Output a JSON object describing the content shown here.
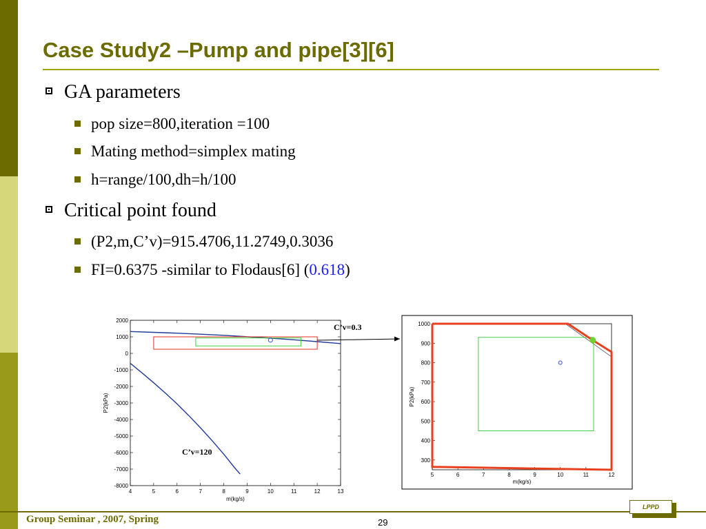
{
  "slide": {
    "title": "Case Study2 –Pump and pipe[3][6]",
    "bullets": [
      {
        "text": "GA parameters",
        "sub": [
          "pop size=800,iteration =100",
          "Mating method=simplex mating",
          "h=range/100,dh=h/100"
        ]
      },
      {
        "text": "Critical point found",
        "sub": [
          "(P2,m,C’v)=915.4706,11.2749,0.3036"
        ],
        "fi": {
          "prefix": "FI=0.6375 -similar to Flodaus[6] (",
          "value": "0.618",
          "suffix": ")"
        }
      }
    ]
  },
  "footer": {
    "left": "Group Seminar , 2007, Spring",
    "page": "29",
    "logo": "LPPD"
  },
  "chart_data": [
    {
      "type": "line",
      "xlabel": "m(kg/s)",
      "ylabel": "P2(kPa)",
      "xlim": [
        4,
        13
      ],
      "ylim": [
        -8000,
        2000
      ],
      "xticks": [
        4,
        5,
        6,
        7,
        8,
        9,
        10,
        11,
        12,
        13
      ],
      "yticks": [
        2000,
        1000,
        0,
        -1000,
        -2000,
        -3000,
        -4000,
        -5000,
        -6000,
        -7000,
        -8000
      ],
      "color_curves": "#1f3a9a",
      "annotations": [
        "C’v=0.3",
        "C’v=120"
      ],
      "series": [
        {
          "x": [
            4,
            5,
            6,
            7,
            8,
            9,
            10,
            11,
            12,
            13
          ],
          "y": [
            1320,
            1270,
            1220,
            1160,
            1090,
            1010,
            920,
            820,
            710,
            590
          ]
        },
        {
          "x": [
            4,
            4.5,
            5,
            5.5,
            6,
            6.5,
            7,
            7.5,
            8,
            8.5,
            8.7
          ],
          "y": [
            -600,
            -1180,
            -1780,
            -2400,
            -3060,
            -3760,
            -4500,
            -5280,
            -6100,
            -6980,
            -7300
          ]
        }
      ],
      "boxes": [
        {
          "x": [
            5,
            12
          ],
          "y": [
            250,
            1000
          ],
          "color": "#e03020"
        },
        {
          "x": [
            6.8,
            11.3
          ],
          "y": [
            450,
            930
          ],
          "color": "#40d040"
        }
      ],
      "point": {
        "x": 10,
        "y": 800
      }
    },
    {
      "type": "line",
      "xlabel": "m(kg/s)",
      "ylabel": "P2(kPa)",
      "xlim": [
        5,
        12
      ],
      "ylim": [
        250,
        1000
      ],
      "xticks": [
        5,
        6,
        7,
        8,
        9,
        10,
        11,
        12
      ],
      "yticks": [
        1000,
        900,
        800,
        700,
        600,
        500,
        400,
        300
      ],
      "region": {
        "x": [
          5,
          10.3,
          11.27,
          12,
          12,
          5,
          5
        ],
        "y": [
          1000,
          1000,
          915,
          855,
          250,
          265,
          1000
        ],
        "color": "#e8401c"
      },
      "lines": [
        {
          "x": [
            10.2,
            12
          ],
          "y": [
            1000,
            830
          ]
        }
      ],
      "box": {
        "x": [
          6.8,
          11.3
        ],
        "y": [
          450,
          930
        ],
        "color": "#40d040"
      },
      "critical_point": {
        "x": 11.27,
        "y": 915,
        "color": "#70d030"
      },
      "point": {
        "x": 10,
        "y": 800
      }
    }
  ]
}
